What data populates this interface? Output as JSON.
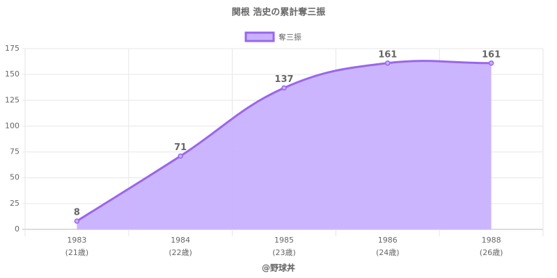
{
  "chart_data": {
    "type": "area",
    "title": "関根 浩史の累計奪三振",
    "categories": [
      "1983",
      "1984",
      "1985",
      "1986",
      "1988"
    ],
    "category_sublabels": [
      "(21歳)",
      "(22歳)",
      "(23歳)",
      "(24歳)",
      "(26歳)"
    ],
    "series": [
      {
        "name": "奪三振",
        "color": "#9966ee",
        "fill": "#c9b1ff",
        "values": [
          8,
          71,
          137,
          161,
          161
        ]
      }
    ],
    "ylim": [
      0,
      175
    ],
    "yticks": [
      0,
      25,
      50,
      75,
      100,
      125,
      150,
      175
    ],
    "grid": true,
    "legend": "top",
    "xlabel": "@野球丼"
  }
}
